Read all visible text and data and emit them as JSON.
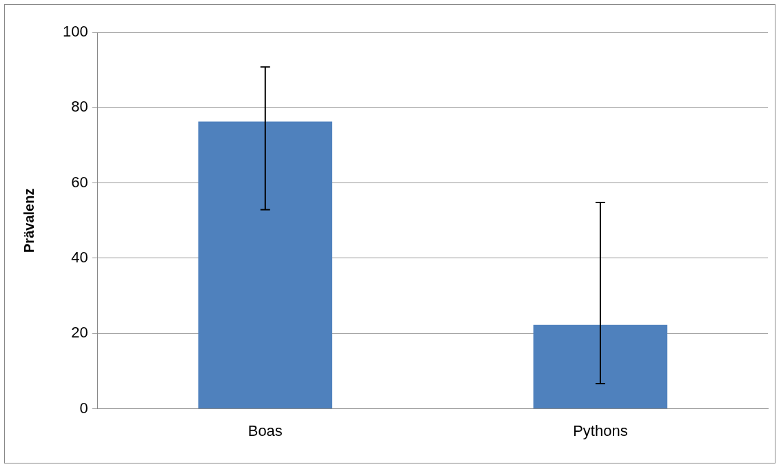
{
  "chart_data": {
    "type": "bar",
    "ylabel": "Prävalenz",
    "categories": [
      "Boas",
      "Pythons"
    ],
    "values": [
      76.3,
      22.3
    ],
    "errors": [
      [
        52.9,
        90.8
      ],
      [
        6.7,
        54.8
      ]
    ],
    "color": "#4f81bd",
    "ylim": [
      0,
      100
    ],
    "yticks": [
      0,
      20,
      40,
      60,
      80,
      100
    ],
    "grid": "y",
    "legend": false
  }
}
